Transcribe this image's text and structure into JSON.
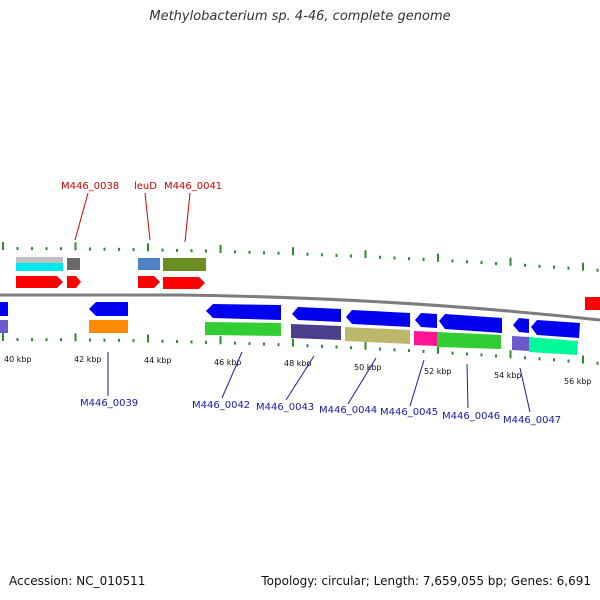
{
  "title": "Methylobacterium sp. 4-46, complete genome",
  "accession": "Accession: NC_010511",
  "summary": "Topology: circular; Length: 7,659,055 bp; Genes: 6,691",
  "colors": {
    "backbone": "#8c8c8c",
    "tick": "#2e8b2e",
    "label_forward": "#cc0000",
    "label_reverse": "#1a1aaa"
  },
  "scale_labels": [
    "40 kbp",
    "42 kbp",
    "44 kbp",
    "46 kbp",
    "48 kbp",
    "50 kbp",
    "52 kbp",
    "54 kbp",
    "56 kbp"
  ],
  "gene_labels_forward": [
    "M446_0038",
    "leuD",
    "M446_0041"
  ],
  "gene_labels_reverse": [
    "M446_0039",
    "M446_0042",
    "M446_0043",
    "M446_0044",
    "M446_0045",
    "M446_0046",
    "M446_0047"
  ],
  "feature_colors": {
    "cds": "#ff0000",
    "cds_reverse": "#0000ee",
    "cog_a": "#c0c0c0",
    "cog_b": "#00eeee",
    "cog_c": "#666666",
    "cog_d": "#4f84c4",
    "cog_e": "#6b8e23",
    "cog_f": "#ff8c00",
    "cog_g": "#32cd32",
    "cog_h": "#4b3f8c",
    "cog_i": "#bdb76b",
    "cog_j": "#ff1493",
    "cog_k": "#6a5acd",
    "cog_l": "#00fa9a"
  }
}
